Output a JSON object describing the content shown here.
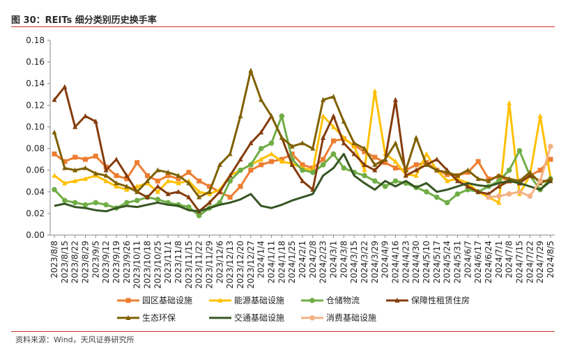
{
  "title": "图 30：REITs 细分类别历史换手率",
  "source": "资料来源：Wind，天风证券研究所",
  "chart_data": {
    "type": "line",
    "title": "图 30：REITs 细分类别历史换手率",
    "xlabel": "",
    "ylabel": "",
    "ylim": [
      0,
      0.18
    ],
    "yticks": [
      "0.00",
      "0.02",
      "0.04",
      "0.06",
      "0.08",
      "0.10",
      "0.12",
      "0.14",
      "0.16",
      "0.18"
    ],
    "categories": [
      "2023/8/8",
      "2023/8/15",
      "2023/8/22",
      "2023/8/29",
      "2023/9/5",
      "2023/9/12",
      "2023/9/19",
      "2023/9/26",
      "2023/10/11",
      "2023/10/18",
      "2023/10/25",
      "2023/11/1",
      "2023/11/8",
      "2023/11/15",
      "2023/11/22",
      "2023/11/29",
      "2023/12/6",
      "2023/12/13",
      "2023/12/20",
      "2023/12/27",
      "2024/1/4",
      "2024/1/11",
      "2024/1/18",
      "2024/1/25",
      "2024/2/1",
      "2024/2/8",
      "2024/2/23",
      "2024/3/1",
      "2024/3/8",
      "2024/3/15",
      "2024/3/22",
      "2024/3/29",
      "2024/4/9",
      "2024/4/16",
      "2024/4/23",
      "2024/4/30",
      "2024/5/10",
      "2024/5/17",
      "2024/5/24",
      "2024/5/31",
      "2024/6/7",
      "2024/6/17",
      "2024/6/24",
      "2024/7/1",
      "2024/7/8",
      "2024/7/15",
      "2024/7/22",
      "2024/7/29",
      "2024/8/5"
    ],
    "legend_position": "bottom",
    "series": [
      {
        "name": "园区基础设施",
        "color": "#ED7D31",
        "marker": "square",
        "values": [
          0.075,
          0.068,
          0.072,
          0.07,
          0.073,
          0.063,
          0.055,
          0.052,
          0.067,
          0.055,
          0.05,
          0.055,
          0.052,
          0.058,
          0.05,
          0.045,
          0.04,
          0.035,
          0.045,
          0.06,
          0.065,
          0.068,
          0.07,
          0.075,
          0.065,
          0.062,
          0.07,
          0.087,
          0.089,
          0.083,
          0.077,
          0.072,
          0.067,
          0.062,
          0.06,
          0.065,
          0.067,
          0.06,
          0.056,
          0.055,
          0.058,
          0.068,
          0.052,
          0.054,
          0.05,
          0.048,
          0.055,
          0.06,
          0.07
        ]
      },
      {
        "name": "能源基础设施",
        "color": "#FFC000",
        "marker": "triangle",
        "values": [
          0.055,
          0.048,
          0.05,
          0.052,
          0.055,
          0.05,
          0.045,
          0.042,
          0.045,
          0.048,
          0.04,
          0.05,
          0.048,
          0.05,
          0.04,
          0.038,
          0.042,
          0.055,
          0.06,
          0.065,
          0.07,
          0.075,
          0.068,
          0.066,
          0.062,
          0.06,
          0.11,
          0.1,
          0.09,
          0.082,
          0.06,
          0.133,
          0.075,
          0.068,
          0.056,
          0.055,
          0.075,
          0.06,
          0.05,
          0.052,
          0.048,
          0.04,
          0.035,
          0.03,
          0.122,
          0.038,
          0.055,
          0.11,
          0.053
        ]
      },
      {
        "name": "仓储物流",
        "color": "#70AD47",
        "marker": "circle",
        "values": [
          0.042,
          0.032,
          0.03,
          0.028,
          0.03,
          0.028,
          0.025,
          0.03,
          0.032,
          0.035,
          0.033,
          0.03,
          0.028,
          0.026,
          0.018,
          0.025,
          0.03,
          0.05,
          0.06,
          0.065,
          0.08,
          0.085,
          0.11,
          0.07,
          0.06,
          0.058,
          0.065,
          0.075,
          0.062,
          0.058,
          0.055,
          0.05,
          0.045,
          0.05,
          0.048,
          0.044,
          0.04,
          0.035,
          0.03,
          0.038,
          0.042,
          0.04,
          0.045,
          0.05,
          0.06,
          0.078,
          0.055,
          0.042,
          0.052
        ]
      },
      {
        "name": "保障性租赁住房",
        "color": "#843C0C",
        "marker": "triangle",
        "values": [
          0.125,
          0.137,
          0.1,
          0.11,
          0.105,
          0.06,
          0.07,
          0.055,
          0.04,
          0.035,
          0.045,
          0.038,
          0.04,
          0.035,
          0.022,
          0.03,
          0.04,
          0.055,
          0.07,
          0.085,
          0.095,
          0.11,
          0.09,
          0.065,
          0.05,
          0.042,
          0.09,
          0.11,
          0.085,
          0.075,
          0.065,
          0.06,
          0.07,
          0.125,
          0.055,
          0.06,
          0.065,
          0.07,
          0.06,
          0.05,
          0.045,
          0.04,
          0.038,
          0.045,
          0.05,
          0.048,
          0.055,
          0.05,
          0.05
        ]
      },
      {
        "name": "生态环保",
        "color": "#7F6000",
        "marker": "triangle",
        "values": [
          0.095,
          0.062,
          0.06,
          0.062,
          0.057,
          0.055,
          0.048,
          0.045,
          0.04,
          0.05,
          0.06,
          0.058,
          0.055,
          0.048,
          0.035,
          0.04,
          0.065,
          0.075,
          0.11,
          0.152,
          0.125,
          0.11,
          0.09,
          0.082,
          0.085,
          0.08,
          0.125,
          0.128,
          0.105,
          0.085,
          0.08,
          0.065,
          0.07,
          0.085,
          0.06,
          0.09,
          0.065,
          0.06,
          0.058,
          0.055,
          0.06,
          0.052,
          0.05,
          0.055,
          0.052,
          0.05,
          0.058,
          0.048,
          0.052
        ]
      },
      {
        "name": "交通基础设施",
        "color": "#375623",
        "marker": "none",
        "values": [
          0.027,
          0.029,
          0.026,
          0.025,
          0.023,
          0.022,
          0.025,
          0.027,
          0.026,
          0.028,
          0.03,
          0.028,
          0.027,
          0.023,
          0.022,
          0.025,
          0.028,
          0.03,
          0.033,
          0.038,
          0.027,
          0.025,
          0.028,
          0.032,
          0.035,
          0.038,
          0.055,
          0.062,
          0.075,
          0.055,
          0.048,
          0.042,
          0.05,
          0.045,
          0.05,
          0.044,
          0.048,
          0.04,
          0.042,
          0.045,
          0.048,
          0.046,
          0.045,
          0.048,
          0.05,
          0.048,
          0.045,
          0.042,
          0.05
        ]
      },
      {
        "name": "消费基础设施",
        "color": "#F4B183",
        "marker": "circle",
        "values": [
          null,
          null,
          null,
          null,
          null,
          null,
          null,
          null,
          null,
          null,
          null,
          null,
          null,
          null,
          null,
          null,
          null,
          null,
          null,
          null,
          null,
          null,
          null,
          null,
          null,
          null,
          null,
          null,
          null,
          null,
          null,
          null,
          null,
          null,
          null,
          null,
          null,
          null,
          null,
          null,
          null,
          null,
          0.035,
          0.036,
          0.038,
          0.04,
          0.036,
          0.05,
          0.082
        ]
      }
    ]
  }
}
